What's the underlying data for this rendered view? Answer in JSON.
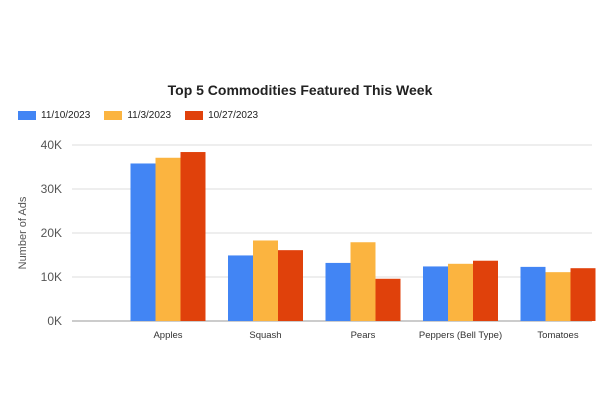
{
  "chart_data": {
    "type": "bar",
    "title": "Top 5 Commodities Featured This Week",
    "xlabel": "",
    "ylabel": "Number of Ads",
    "categories": [
      "Apples",
      "Squash",
      "Pears",
      "Peppers (Bell Type)",
      "Tomatoes"
    ],
    "series": [
      {
        "name": "11/10/2023",
        "color": "#4285f4",
        "values": [
          35800,
          14900,
          13200,
          12400,
          12300
        ]
      },
      {
        "name": "11/3/2023",
        "color": "#fbb440",
        "values": [
          37100,
          18300,
          17900,
          13000,
          11100
        ]
      },
      {
        "name": "10/27/2023",
        "color": "#e0410b",
        "values": [
          38400,
          16100,
          9600,
          13700,
          12000
        ]
      }
    ],
    "ylim": [
      0,
      40000
    ],
    "yticks": [
      "0K",
      "10K",
      "20K",
      "30K",
      "40K"
    ],
    "grid": true,
    "legend_position": "top-left"
  }
}
